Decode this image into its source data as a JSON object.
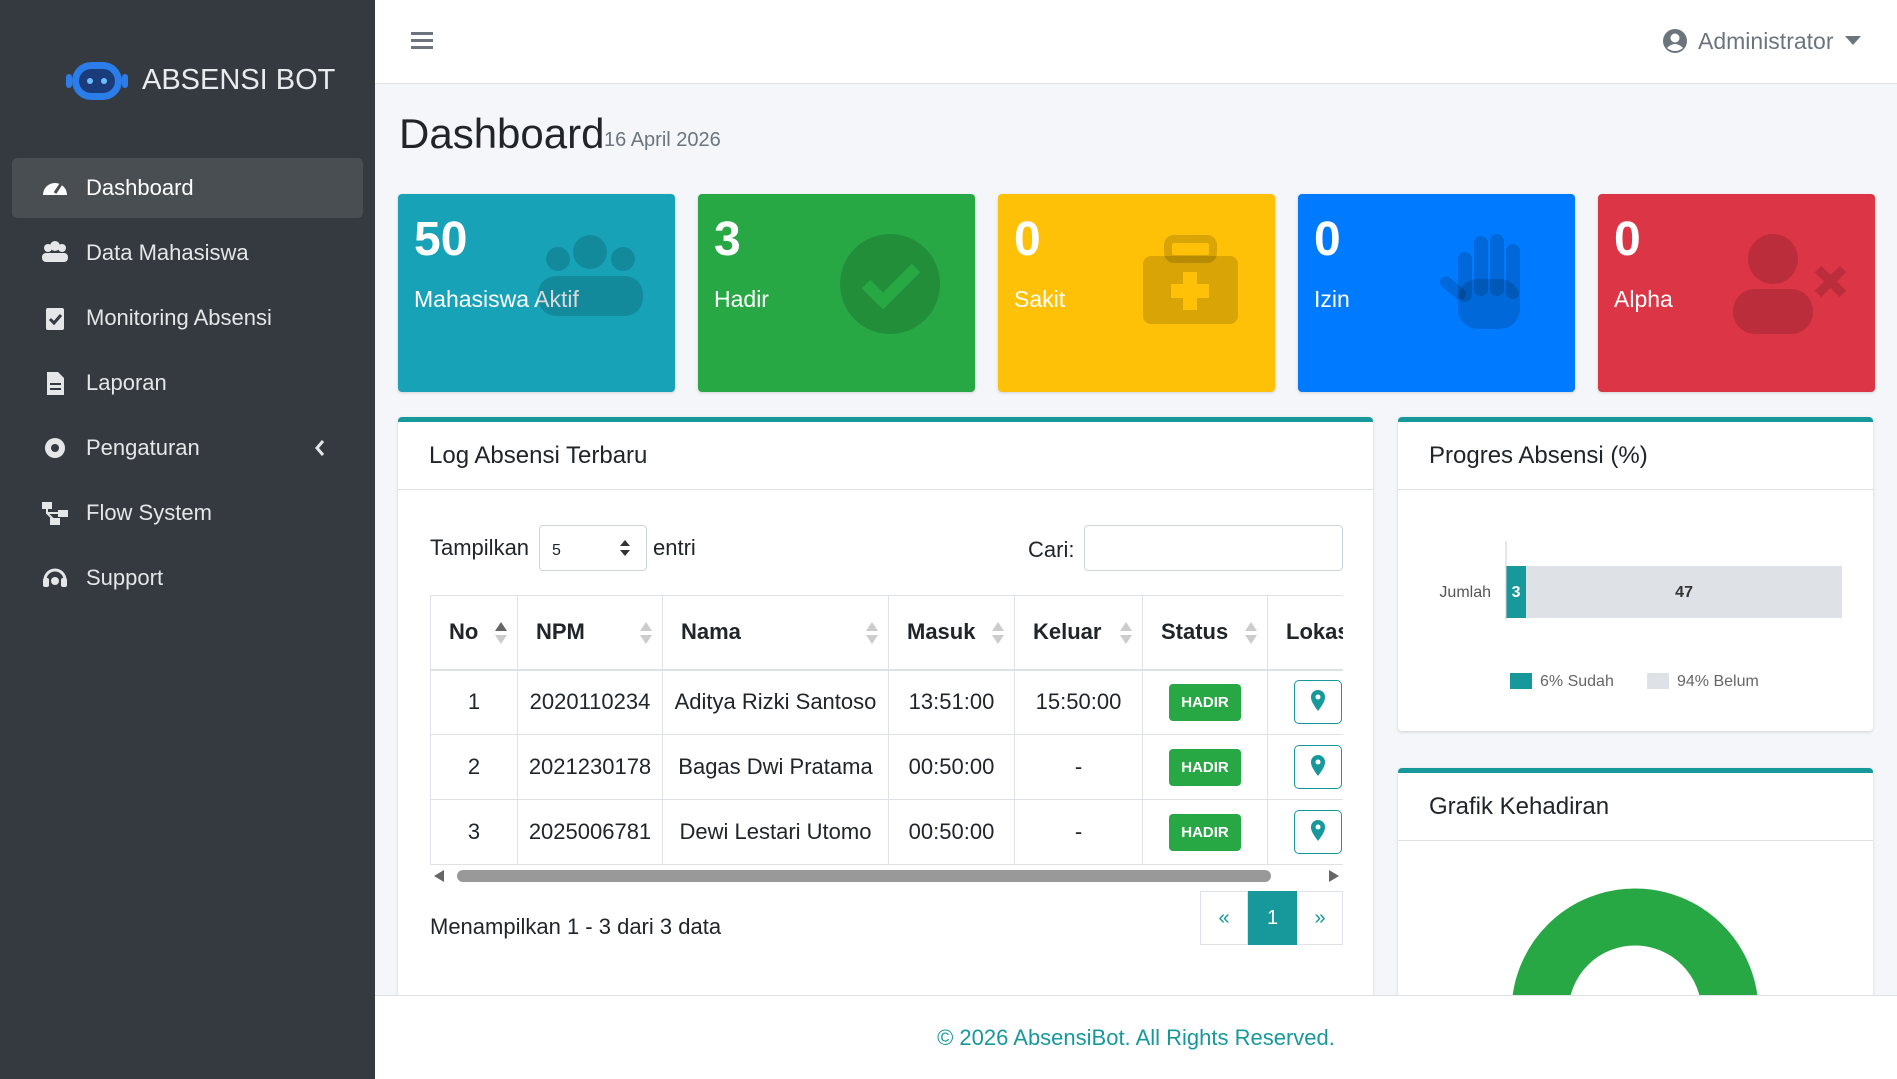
{
  "sidebar": {
    "brand": "ABSENSI BOT",
    "menu": [
      "Dashboard",
      "Data Mahasiswa",
      "Monitoring Absensi",
      "Laporan",
      "Pengaturan",
      "Flow System",
      "Support"
    ]
  },
  "header": {
    "user": "Administrator"
  },
  "page": {
    "title": "Dashboard",
    "date": "16 April 2026"
  },
  "stats": [
    {
      "value": 50,
      "label": "Mahasiswa Aktif",
      "color": "#17a2b8"
    },
    {
      "value": 3,
      "label": "Hadir",
      "color": "#28a745"
    },
    {
      "value": 0,
      "label": "Sakit",
      "color": "#ffc107"
    },
    {
      "value": 0,
      "label": "Izin",
      "color": "#007bff"
    },
    {
      "value": 0,
      "label": "Alpha",
      "color": "#dc3545"
    }
  ],
  "log": {
    "title": "Log Absensi Terbaru",
    "length_label": "Tampilkan",
    "length_value": "5",
    "length_suffix": "entri",
    "search_label": "Cari:",
    "columns": [
      "No",
      "NPM",
      "Nama",
      "Masuk",
      "Keluar",
      "Status",
      "Lokasi"
    ],
    "rows": [
      [
        "1",
        "2020110234",
        "Aditya Rizki Santoso",
        "13:51:00",
        "15:50:00",
        "HADIR"
      ],
      [
        "2",
        "2021230178",
        "Bagas Dwi Pratama",
        "00:50:00",
        "-",
        "HADIR"
      ],
      [
        "3",
        "2025006781",
        "Dewi Lestari Utomo",
        "00:50:00",
        "-",
        "HADIR"
      ]
    ],
    "info": "Menampilkan 1 - 3 dari 3 data",
    "pages": [
      "«",
      "1",
      "»"
    ]
  },
  "progress": {
    "title": "Progres Absensi (%)",
    "category": "Jumlah",
    "xlim": [
      0,
      50
    ],
    "series": [
      {
        "name": "6% Sudah",
        "color": "#17999b",
        "value": 3
      },
      {
        "name": "94% Belum",
        "color": "#dee2e6",
        "value": 47
      }
    ]
  },
  "attendance": {
    "title": "Grafik Kehadiran"
  },
  "footer": "© 2026 AbsensiBot. All Rights Reserved."
}
